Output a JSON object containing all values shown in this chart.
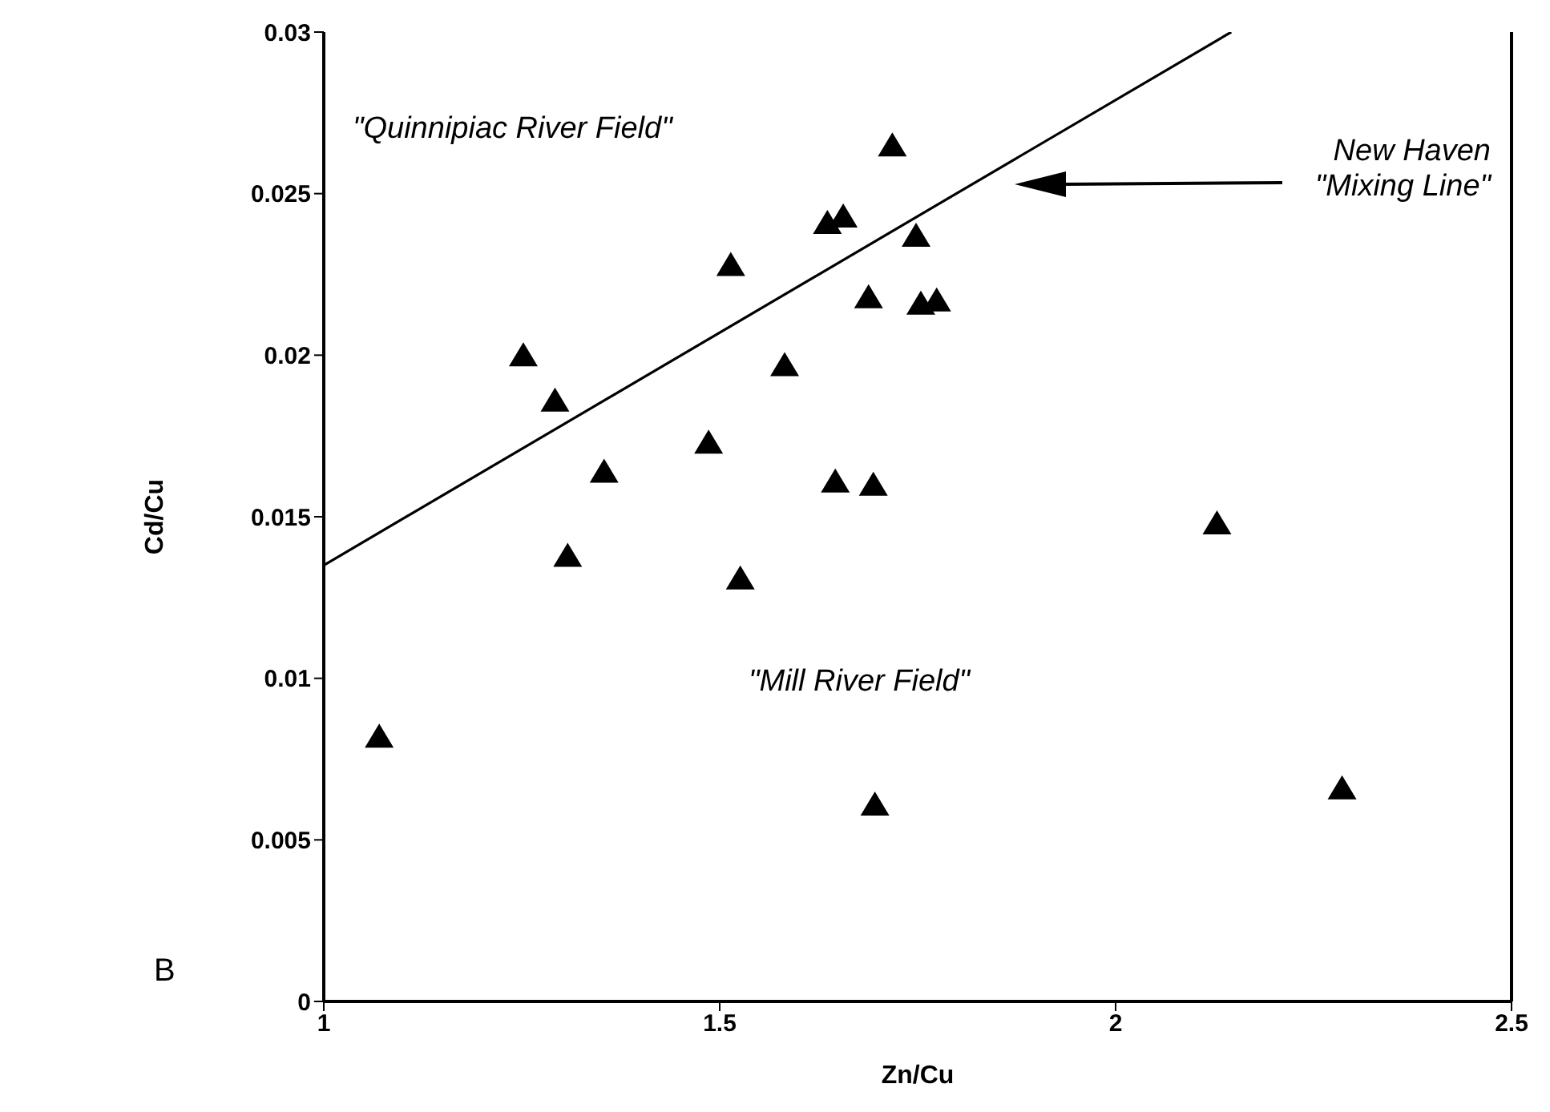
{
  "chart_data": {
    "type": "scatter",
    "xlabel": "Zn/Cu",
    "ylabel": "Cd/Cu",
    "xlim": [
      1,
      2.5
    ],
    "xticks": [
      1,
      1.5,
      2,
      2.5
    ],
    "ylim": [
      0,
      0.03
    ],
    "yticks": [
      0,
      0.005,
      0.01,
      0.015,
      0.02,
      0.025,
      0.03
    ],
    "marker": "triangle",
    "series": [
      {
        "color": "#000000",
        "x": [
          1.07,
          1.252,
          1.292,
          1.308,
          1.354,
          1.486,
          1.514,
          1.526,
          1.582,
          1.636,
          1.646,
          1.656,
          1.688,
          1.694,
          1.696,
          1.718,
          1.748,
          1.754,
          1.774,
          2.128,
          2.286
        ],
        "values": [
          0.0082,
          0.02,
          0.0186,
          0.0138,
          0.0164,
          0.0173,
          0.0228,
          0.0131,
          0.0197,
          0.0241,
          0.0161,
          0.0243,
          0.0218,
          0.016,
          0.0061,
          0.0265,
          0.0237,
          0.0216,
          0.0217,
          0.0148,
          0.0066
        ]
      },
      {
        "type": "line",
        "color": "#000000",
        "marker": "none",
        "x": [
          1,
          2.146
        ],
        "values": [
          0.0135,
          0.03
        ]
      }
    ],
    "annotations": [
      "\"Quinnipiac River Field\"",
      "\"Mill River Field\"",
      "New Haven\n\"Mixing Line\"",
      "B"
    ]
  }
}
